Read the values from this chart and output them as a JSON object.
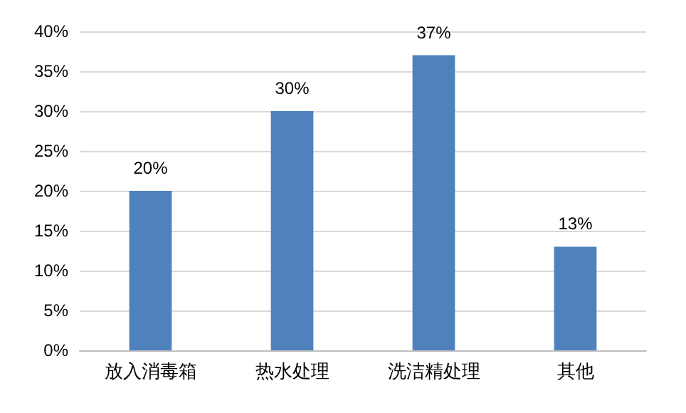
{
  "chart_data": {
    "type": "bar",
    "categories": [
      "放入消毒箱",
      "热水处理",
      "洗洁精处理",
      "其他"
    ],
    "values": [
      20,
      30,
      37,
      13
    ],
    "value_labels": [
      "20%",
      "30%",
      "37%",
      "13%"
    ],
    "color": "#4f81bd",
    "ylim": [
      0,
      40
    ],
    "yticks": [
      {
        "value": 0,
        "label": "0%"
      },
      {
        "value": 5,
        "label": "5%"
      },
      {
        "value": 10,
        "label": "10%"
      },
      {
        "value": 15,
        "label": "15%"
      },
      {
        "value": 20,
        "label": "20%"
      },
      {
        "value": 25,
        "label": "25%"
      },
      {
        "value": 30,
        "label": "30%"
      },
      {
        "value": 35,
        "label": "35%"
      },
      {
        "value": 40,
        "label": "40%"
      }
    ],
    "grid": "y"
  }
}
